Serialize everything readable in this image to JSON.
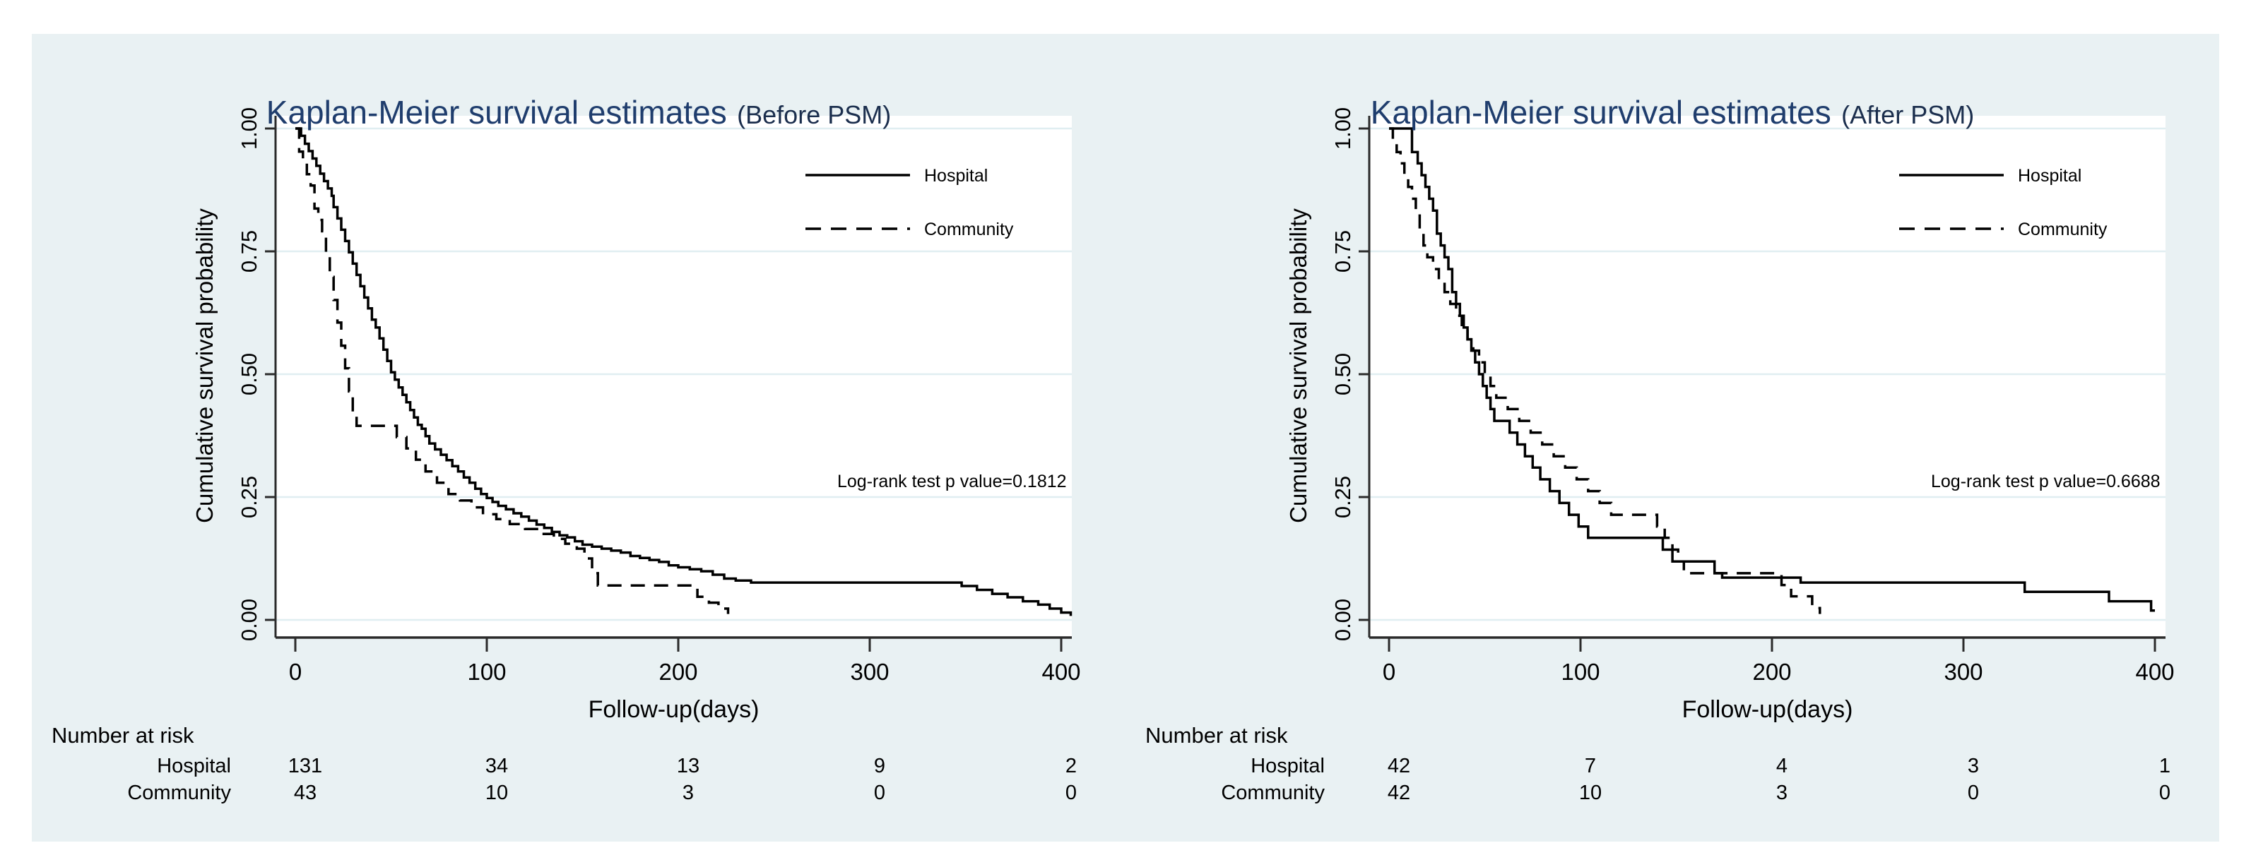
{
  "figure": {
    "background": "#ffffff",
    "panel_background": "#e9f1f3",
    "plot_background": "#ffffff",
    "grid_color": "#e0eef1",
    "axis_color": "#2b2b2b",
    "curve_color": "#000000",
    "title_color": "#1f3d6d"
  },
  "chart_data": [
    {
      "type": "line",
      "title_main": "Kaplan-Meier survival estimates",
      "title_paren": "(Before PSM)",
      "xlabel": "Follow-up(days)",
      "ylabel": "Cumulative survival probability",
      "xlim": [
        0,
        420
      ],
      "ylim": [
        0,
        1
      ],
      "grid": true,
      "x_ticks": [
        0,
        100,
        200,
        300,
        400
      ],
      "x_tick_labels": [
        "0",
        "100",
        "200",
        "300",
        "400"
      ],
      "y_ticks": [
        1.0,
        0.75,
        0.5,
        0.25,
        0.0
      ],
      "y_tick_labels": [
        "1.00",
        "0.75",
        "0.50",
        "0.25",
        "0.00"
      ],
      "annotation": "Log-rank test p value=0.1812",
      "legend_position": "top-right-inside",
      "legend": [
        {
          "label": "Hospital",
          "style": "solid"
        },
        {
          "label": "Community",
          "style": "dashed"
        }
      ],
      "series": [
        {
          "name": "Hospital",
          "style": "solid",
          "points": [
            [
              0,
              1
            ],
            [
              3,
              0.985
            ],
            [
              5,
              0.969
            ],
            [
              7,
              0.954
            ],
            [
              9,
              0.939
            ],
            [
              11,
              0.924
            ],
            [
              13,
              0.908
            ],
            [
              15,
              0.893
            ],
            [
              17,
              0.878
            ],
            [
              19,
              0.863
            ],
            [
              20,
              0.84
            ],
            [
              22,
              0.817
            ],
            [
              24,
              0.794
            ],
            [
              26,
              0.771
            ],
            [
              28,
              0.748
            ],
            [
              30,
              0.725
            ],
            [
              32,
              0.702
            ],
            [
              34,
              0.679
            ],
            [
              36,
              0.656
            ],
            [
              38,
              0.634
            ],
            [
              40,
              0.611
            ],
            [
              42,
              0.595
            ],
            [
              44,
              0.573
            ],
            [
              46,
              0.55
            ],
            [
              48,
              0.527
            ],
            [
              50,
              0.504
            ],
            [
              52,
              0.489
            ],
            [
              54,
              0.473
            ],
            [
              56,
              0.458
            ],
            [
              58,
              0.443
            ],
            [
              60,
              0.427
            ],
            [
              62,
              0.412
            ],
            [
              64,
              0.397
            ],
            [
              66,
              0.389
            ],
            [
              68,
              0.374
            ],
            [
              70,
              0.359
            ],
            [
              73,
              0.347
            ],
            [
              76,
              0.336
            ],
            [
              79,
              0.325
            ],
            [
              82,
              0.313
            ],
            [
              85,
              0.302
            ],
            [
              88,
              0.29
            ],
            [
              91,
              0.279
            ],
            [
              94,
              0.267
            ],
            [
              97,
              0.256
            ],
            [
              100,
              0.248
            ],
            [
              103,
              0.24
            ],
            [
              106,
              0.232
            ],
            [
              110,
              0.225
            ],
            [
              114,
              0.217
            ],
            [
              118,
              0.21
            ],
            [
              122,
              0.202
            ],
            [
              126,
              0.194
            ],
            [
              130,
              0.187
            ],
            [
              134,
              0.179
            ],
            [
              138,
              0.172
            ],
            [
              142,
              0.168
            ],
            [
              146,
              0.16
            ],
            [
              150,
              0.153
            ],
            [
              155,
              0.149
            ],
            [
              160,
              0.145
            ],
            [
              165,
              0.141
            ],
            [
              170,
              0.137
            ],
            [
              175,
              0.13
            ],
            [
              180,
              0.126
            ],
            [
              185,
              0.122
            ],
            [
              190,
              0.118
            ],
            [
              195,
              0.111
            ],
            [
              200,
              0.107
            ],
            [
              206,
              0.103
            ],
            [
              212,
              0.099
            ],
            [
              218,
              0.092
            ],
            [
              224,
              0.084
            ],
            [
              230,
              0.08
            ],
            [
              238,
              0.076
            ],
            [
              340,
              0.076
            ],
            [
              348,
              0.069
            ],
            [
              356,
              0.061
            ],
            [
              364,
              0.053
            ],
            [
              372,
              0.046
            ],
            [
              380,
              0.038
            ],
            [
              388,
              0.031
            ],
            [
              394,
              0.023
            ],
            [
              400,
              0.015
            ],
            [
              405,
              0.008
            ]
          ]
        },
        {
          "name": "Community",
          "style": "dashed",
          "points": [
            [
              0,
              1
            ],
            [
              2,
              0.953
            ],
            [
              4,
              0.93
            ],
            [
              6,
              0.907
            ],
            [
              8,
              0.884
            ],
            [
              10,
              0.837
            ],
            [
              12,
              0.814
            ],
            [
              14,
              0.791
            ],
            [
              16,
              0.744
            ],
            [
              18,
              0.698
            ],
            [
              20,
              0.651
            ],
            [
              22,
              0.605
            ],
            [
              24,
              0.558
            ],
            [
              26,
              0.512
            ],
            [
              28,
              0.465
            ],
            [
              30,
              0.419
            ],
            [
              32,
              0.395
            ],
            [
              50,
              0.395
            ],
            [
              53,
              0.372
            ],
            [
              58,
              0.349
            ],
            [
              63,
              0.326
            ],
            [
              68,
              0.302
            ],
            [
              74,
              0.279
            ],
            [
              80,
              0.256
            ],
            [
              86,
              0.243
            ],
            [
              92,
              0.229
            ],
            [
              98,
              0.215
            ],
            [
              105,
              0.205
            ],
            [
              112,
              0.195
            ],
            [
              120,
              0.185
            ],
            [
              128,
              0.175
            ],
            [
              135,
              0.165
            ],
            [
              141,
              0.155
            ],
            [
              147,
              0.145
            ],
            [
              151,
              0.125
            ],
            [
              155,
              0.095
            ],
            [
              158,
              0.07
            ],
            [
              205,
              0.07
            ],
            [
              210,
              0.047
            ],
            [
              216,
              0.035
            ],
            [
              221,
              0.023
            ],
            [
              226,
              0.012
            ]
          ]
        }
      ],
      "risk_table": {
        "header": "Number at risk",
        "time_points": [
          0,
          100,
          200,
          300,
          400
        ],
        "rows": [
          {
            "label": "Hospital",
            "counts": [
              "131",
              "34",
              "13",
              "9",
              "2"
            ]
          },
          {
            "label": "Community",
            "counts": [
              "43",
              "10",
              "3",
              "0",
              "0"
            ]
          }
        ]
      }
    },
    {
      "type": "line",
      "title_main": "Kaplan-Meier survival estimates",
      "title_paren": "(After PSM)",
      "xlabel": "Follow-up(days)",
      "ylabel": "Cumulative survival probability",
      "xlim": [
        0,
        420
      ],
      "ylim": [
        0,
        1
      ],
      "grid": true,
      "x_ticks": [
        0,
        100,
        200,
        300,
        400
      ],
      "x_tick_labels": [
        "0",
        "100",
        "200",
        "300",
        "400"
      ],
      "y_ticks": [
        1.0,
        0.75,
        0.5,
        0.25,
        0.0
      ],
      "y_tick_labels": [
        "1.00",
        "0.75",
        "0.50",
        "0.25",
        "0.00"
      ],
      "annotation": "Log-rank test p value=0.6688",
      "legend_position": "top-right-inside",
      "legend": [
        {
          "label": "Hospital",
          "style": "solid"
        },
        {
          "label": "Community",
          "style": "dashed"
        }
      ],
      "series": [
        {
          "name": "Hospital",
          "style": "solid",
          "points": [
            [
              0,
              1
            ],
            [
              10,
              1
            ],
            [
              12,
              0.952
            ],
            [
              15,
              0.929
            ],
            [
              17,
              0.905
            ],
            [
              19,
              0.881
            ],
            [
              21,
              0.857
            ],
            [
              23,
              0.833
            ],
            [
              25,
              0.786
            ],
            [
              27,
              0.762
            ],
            [
              29,
              0.738
            ],
            [
              31,
              0.714
            ],
            [
              33,
              0.667
            ],
            [
              35,
              0.643
            ],
            [
              37,
              0.619
            ],
            [
              39,
              0.595
            ],
            [
              41,
              0.571
            ],
            [
              43,
              0.548
            ],
            [
              45,
              0.524
            ],
            [
              47,
              0.5
            ],
            [
              49,
              0.476
            ],
            [
              51,
              0.452
            ],
            [
              53,
              0.429
            ],
            [
              55,
              0.405
            ],
            [
              63,
              0.381
            ],
            [
              67,
              0.357
            ],
            [
              71,
              0.333
            ],
            [
              75,
              0.31
            ],
            [
              79,
              0.286
            ],
            [
              84,
              0.262
            ],
            [
              89,
              0.238
            ],
            [
              94,
              0.214
            ],
            [
              99,
              0.19
            ],
            [
              104,
              0.167
            ],
            [
              138,
              0.167
            ],
            [
              143,
              0.143
            ],
            [
              148,
              0.119
            ],
            [
              166,
              0.119
            ],
            [
              170,
              0.095
            ],
            [
              174,
              0.086
            ],
            [
              210,
              0.086
            ],
            [
              215,
              0.076
            ],
            [
              325,
              0.076
            ],
            [
              332,
              0.057
            ],
            [
              370,
              0.057
            ],
            [
              376,
              0.038
            ],
            [
              394,
              0.038
            ],
            [
              398,
              0.019
            ],
            [
              400,
              0.019
            ]
          ]
        },
        {
          "name": "Community",
          "style": "dashed",
          "points": [
            [
              0,
              1
            ],
            [
              2,
              0.976
            ],
            [
              4,
              0.952
            ],
            [
              6,
              0.929
            ],
            [
              8,
              0.905
            ],
            [
              10,
              0.881
            ],
            [
              12,
              0.857
            ],
            [
              14,
              0.833
            ],
            [
              16,
              0.786
            ],
            [
              18,
              0.762
            ],
            [
              20,
              0.738
            ],
            [
              23,
              0.714
            ],
            [
              26,
              0.69
            ],
            [
              29,
              0.667
            ],
            [
              32,
              0.643
            ],
            [
              35,
              0.619
            ],
            [
              38,
              0.595
            ],
            [
              41,
              0.571
            ],
            [
              44,
              0.548
            ],
            [
              47,
              0.524
            ],
            [
              50,
              0.5
            ],
            [
              53,
              0.476
            ],
            [
              56,
              0.452
            ],
            [
              62,
              0.429
            ],
            [
              68,
              0.405
            ],
            [
              74,
              0.381
            ],
            [
              80,
              0.357
            ],
            [
              86,
              0.333
            ],
            [
              92,
              0.31
            ],
            [
              98,
              0.286
            ],
            [
              104,
              0.262
            ],
            [
              110,
              0.238
            ],
            [
              116,
              0.214
            ],
            [
              135,
              0.214
            ],
            [
              140,
              0.19
            ],
            [
              144,
              0.167
            ],
            [
              148,
              0.143
            ],
            [
              151,
              0.119
            ],
            [
              154,
              0.095
            ],
            [
              200,
              0.095
            ],
            [
              205,
              0.071
            ],
            [
              210,
              0.048
            ],
            [
              217,
              0.048
            ],
            [
              221,
              0.024
            ],
            [
              225,
              0.012
            ]
          ]
        }
      ],
      "risk_table": {
        "header": "Number at risk",
        "time_points": [
          0,
          100,
          200,
          300,
          400
        ],
        "rows": [
          {
            "label": "Hospital",
            "counts": [
              "42",
              "7",
              "4",
              "3",
              "1"
            ]
          },
          {
            "label": "Community",
            "counts": [
              "42",
              "10",
              "3",
              "0",
              "0"
            ]
          }
        ]
      }
    }
  ]
}
